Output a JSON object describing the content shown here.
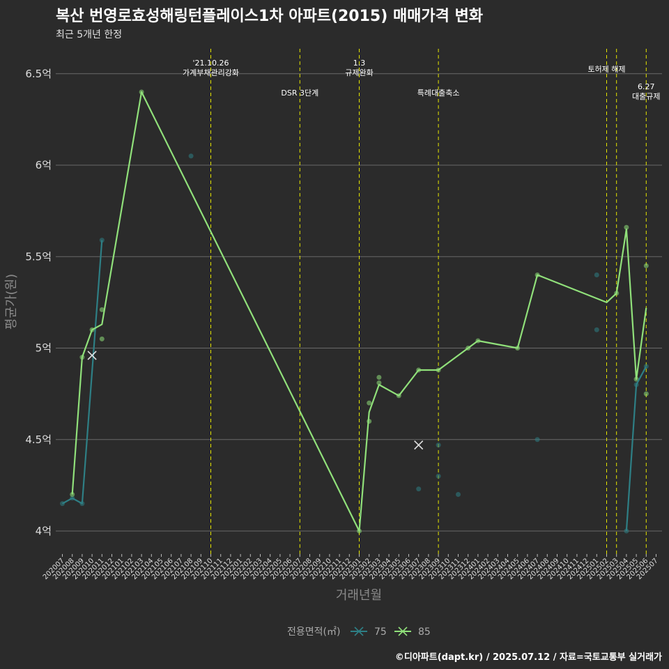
{
  "chart_data": {
    "type": "line",
    "title": "복산 번영로효성해링턴플레이스1차 아파트(2015) 매매가격 변화",
    "subtitle": "최근 5개년 한정",
    "xlabel": "거래년월",
    "ylabel": "평균가(원)",
    "caption": "©디아파트(dapt.kr) / 2025.07.12 / 자료=국토교통부 실거래가",
    "ylim": [
      3.88,
      6.63
    ],
    "y_ticks": [
      {
        "value": 4,
        "label": "4억"
      },
      {
        "value": 4.5,
        "label": "4.5억"
      },
      {
        "value": 5,
        "label": "5억"
      },
      {
        "value": 5.5,
        "label": "5.5억"
      },
      {
        "value": 6,
        "label": "6억"
      },
      {
        "value": 6.5,
        "label": "6.5억"
      }
    ],
    "categories": [
      "202007",
      "202008",
      "202009",
      "202010",
      "202011",
      "202012",
      "202101",
      "202102",
      "202103",
      "202104",
      "202105",
      "202106",
      "202107",
      "202108",
      "202109",
      "202110",
      "202111",
      "202112",
      "202201",
      "202202",
      "202203",
      "202204",
      "202205",
      "202206",
      "202207",
      "202208",
      "202209",
      "202210",
      "202211",
      "202212",
      "202301",
      "202302",
      "202303",
      "202304",
      "202305",
      "202306",
      "202307",
      "202308",
      "202309",
      "202310",
      "202311",
      "202312",
      "202401",
      "202402",
      "202403",
      "202404",
      "202405",
      "202406",
      "202407",
      "202408",
      "202409",
      "202410",
      "202411",
      "202412",
      "202501",
      "202502",
      "202503",
      "202504",
      "202505",
      "202506",
      "202507"
    ],
    "legend": {
      "title": "전용면적(㎡)",
      "position": "bottom"
    },
    "series": [
      {
        "name": "75",
        "color": "#2e7f85",
        "line": [
          [
            "202007",
            4.15
          ],
          [
            "202008",
            4.18
          ],
          [
            "202009",
            4.15
          ],
          [
            "202011",
            5.59
          ]
        ],
        "line2": [
          [
            "202504",
            4.0
          ],
          [
            "202505",
            4.8
          ],
          [
            "202506",
            4.9
          ]
        ],
        "points": [
          [
            "202007",
            4.15
          ],
          [
            "202008",
            4.18
          ],
          [
            "202009",
            4.15
          ],
          [
            "202011",
            5.59
          ],
          [
            "202108",
            6.05
          ],
          [
            "202307",
            4.23
          ],
          [
            "202309",
            4.47
          ],
          [
            "202309",
            4.3
          ],
          [
            "202311",
            4.2
          ],
          [
            "202407",
            4.5
          ],
          [
            "202501",
            5.4
          ],
          [
            "202501",
            5.1
          ],
          [
            "202504",
            4.0
          ],
          [
            "202505",
            4.8
          ],
          [
            "202506",
            4.9
          ]
        ],
        "cross_points": [
          [
            "202010",
            4.96
          ]
        ]
      },
      {
        "name": "85",
        "color": "#90e07a",
        "line": [
          [
            "202008",
            4.2
          ],
          [
            "202009",
            4.95
          ],
          [
            "202010",
            5.1
          ],
          [
            "202011",
            5.13
          ],
          [
            "202103",
            6.4
          ],
          [
            "202301",
            4.0
          ],
          [
            "202302",
            4.65
          ],
          [
            "202303",
            4.8
          ],
          [
            "202305",
            4.74
          ],
          [
            "202307",
            4.88
          ],
          [
            "202309",
            4.88
          ],
          [
            "202312",
            5.0
          ],
          [
            "202401",
            5.04
          ],
          [
            "202405",
            5.0
          ],
          [
            "202407",
            5.4
          ],
          [
            "202502",
            5.25
          ],
          [
            "202503",
            5.3
          ],
          [
            "202504",
            5.65
          ],
          [
            "202505",
            4.83
          ],
          [
            "202506",
            5.22
          ]
        ],
        "points": [
          [
            "202008",
            4.2
          ],
          [
            "202009",
            4.95
          ],
          [
            "202010",
            5.1
          ],
          [
            "202011",
            5.21
          ],
          [
            "202011",
            5.05
          ],
          [
            "202103",
            6.4
          ],
          [
            "202301",
            4.0
          ],
          [
            "202302",
            4.7
          ],
          [
            "202302",
            4.6
          ],
          [
            "202303",
            4.84
          ],
          [
            "202303",
            4.81
          ],
          [
            "202305",
            4.74
          ],
          [
            "202307",
            4.88
          ],
          [
            "202309",
            4.88
          ],
          [
            "202312",
            5.0
          ],
          [
            "202401",
            5.04
          ],
          [
            "202405",
            5.0
          ],
          [
            "202407",
            5.4
          ],
          [
            "202503",
            5.3
          ],
          [
            "202504",
            5.66
          ],
          [
            "202505",
            4.83
          ],
          [
            "202506",
            5.45
          ],
          [
            "202506",
            4.75
          ]
        ],
        "cross_points": [
          [
            "202307",
            4.47
          ]
        ]
      }
    ],
    "annotations": [
      {
        "x": "202110",
        "lines": [
          "'21.10.26",
          "가계부채관리강화"
        ],
        "tier": "top"
      },
      {
        "x": "202207",
        "lines": [
          "DSR 3단계"
        ],
        "tier": "low"
      },
      {
        "x": "202301",
        "lines": [
          "1.3",
          "규제완화"
        ],
        "tier": "top"
      },
      {
        "x": "202309",
        "lines": [
          "특례대출축소"
        ],
        "tier": "low"
      },
      {
        "x": "202502",
        "lines": [
          "토허제 해제"
        ],
        "tier": "mid"
      },
      {
        "x": "202503",
        "lines": [],
        "tier": "none"
      },
      {
        "x": "202506",
        "lines": [
          "6.27",
          "대출규제"
        ],
        "tier": "right"
      }
    ]
  }
}
